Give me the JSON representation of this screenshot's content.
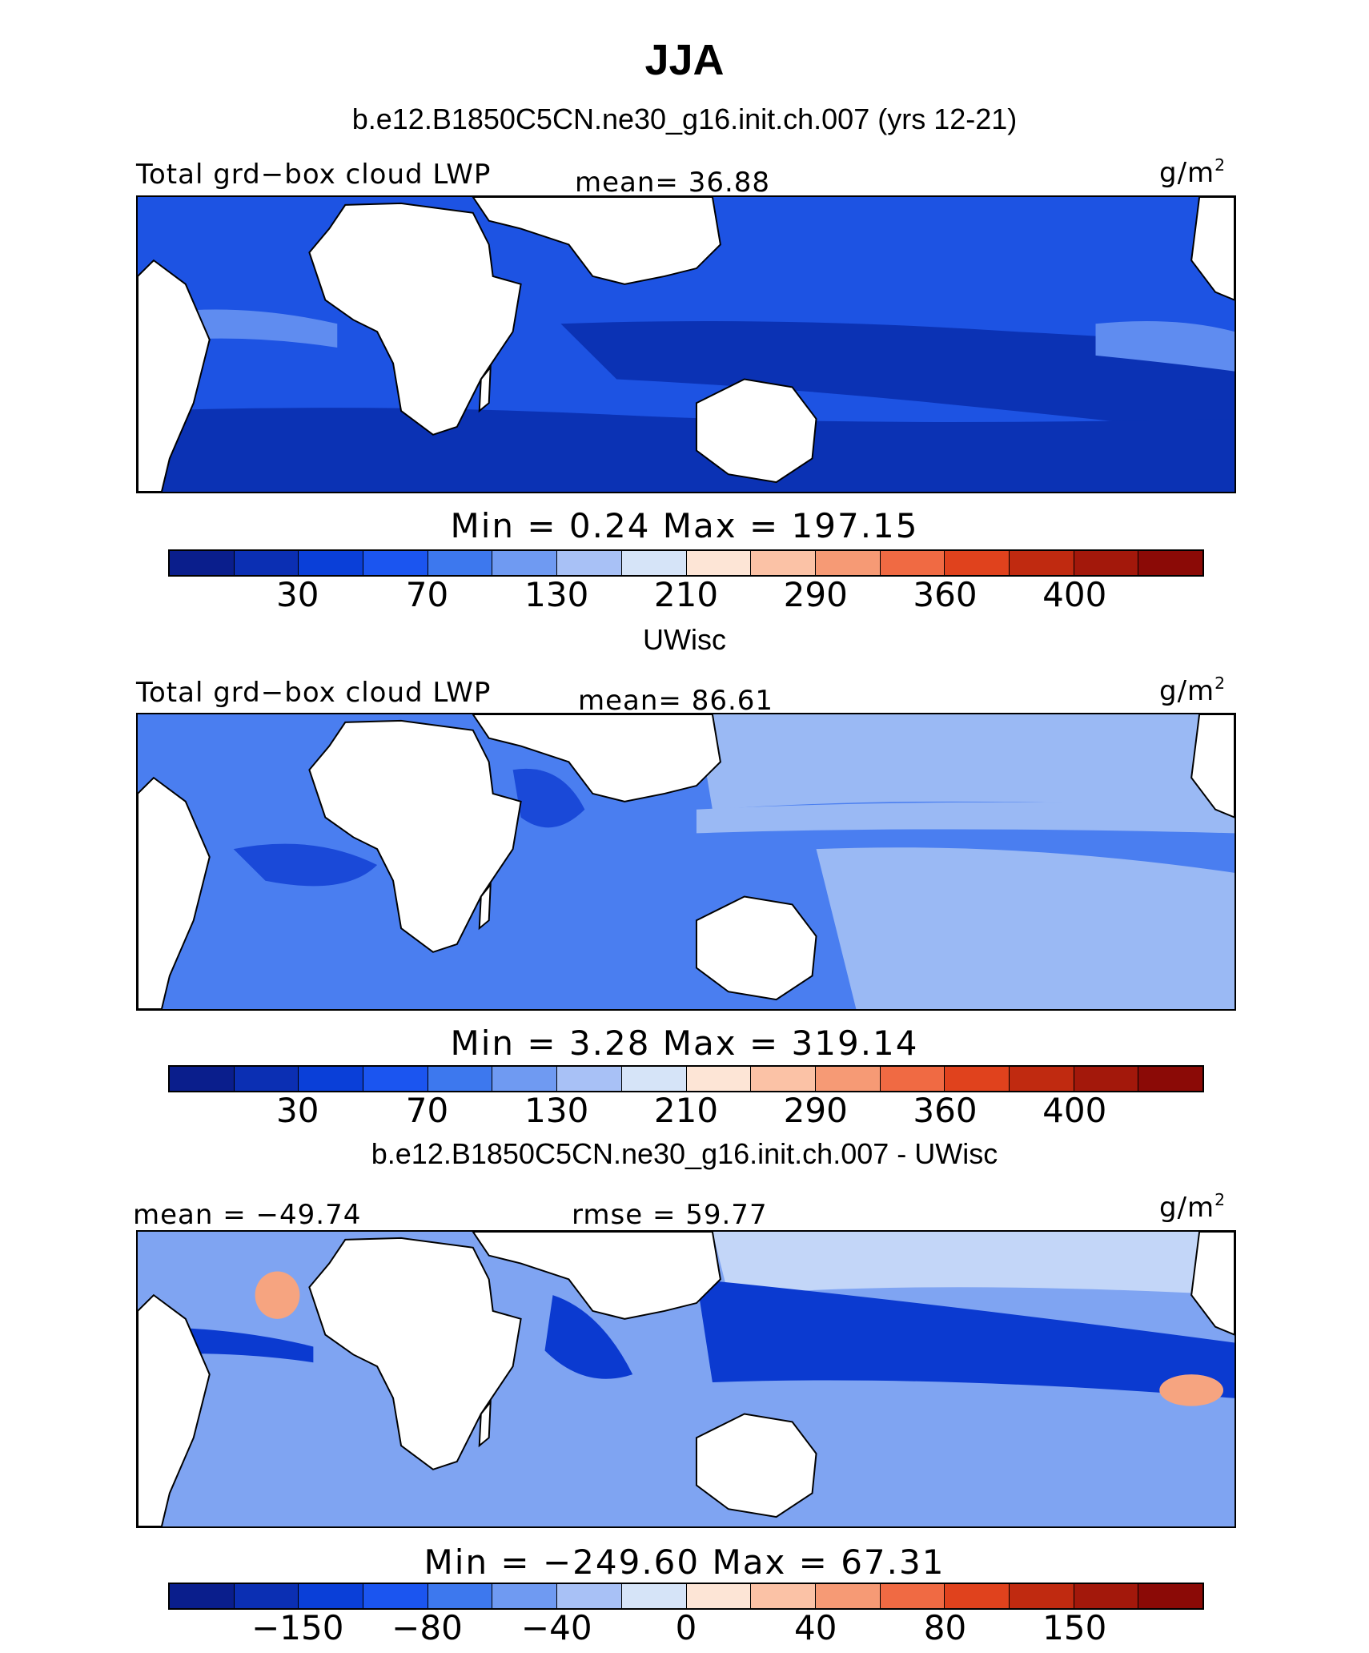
{
  "figure": {
    "title": "JJA"
  },
  "panels": [
    {
      "subtitle": "b.e12.B1850C5CN.ne30_g16.init.ch.007 (yrs 12-21)",
      "left_label": "Total grd−box cloud LWP",
      "center_label": "mean=  36.88",
      "units": "g/m",
      "units_sup": "2",
      "stats": "Min =    0.24 Max = 197.15",
      "palette": [
        "#0a1e8c",
        "#0b2fb3",
        "#0a3fd8",
        "#1b55f0",
        "#3d78ee",
        "#6f9af2",
        "#a8c1f6",
        "#d6e4f8",
        "#fde5d6",
        "#fbc2a6",
        "#f69a75",
        "#f06a43",
        "#e0421d",
        "#c02a10",
        "#a3180b",
        "#8b0a06"
      ],
      "tick_labels": [
        "30",
        "70",
        "130",
        "210",
        "290",
        "360",
        "400"
      ],
      "field_stops": {
        "dominant": "#1d53e3",
        "dark": "#0b32b4",
        "light": "#5f8cf0"
      }
    },
    {
      "subtitle": "UWisc",
      "left_label": "Total grd−box cloud LWP",
      "center_label": "mean=  86.61",
      "units": "g/m",
      "units_sup": "2",
      "stats": "Min =    3.28 Max = 319.14",
      "palette": [
        "#0a1e8c",
        "#0b2fb3",
        "#0a3fd8",
        "#1b55f0",
        "#3d78ee",
        "#6f9af2",
        "#a8c1f6",
        "#d6e4f8",
        "#fde5d6",
        "#fbc2a6",
        "#f69a75",
        "#f06a43",
        "#e0421d",
        "#c02a10",
        "#a3180b",
        "#8b0a06"
      ],
      "tick_labels": [
        "30",
        "70",
        "130",
        "210",
        "290",
        "360",
        "400"
      ],
      "field_stops": {
        "dominant": "#4a7ef0",
        "dark": "#1a49d8",
        "light": "#9ab9f4"
      }
    },
    {
      "subtitle": "b.e12.B1850C5CN.ne30_g16.init.ch.007 - UWisc",
      "left_label": "mean = −49.74",
      "center_label": "rmse =  59.77",
      "units": "g/m",
      "units_sup": "2",
      "stats": "Min = −249.60 Max =  67.31",
      "palette": [
        "#0a1e8c",
        "#0b2fb3",
        "#0a3fd8",
        "#1b55f0",
        "#3d78ee",
        "#6f9af2",
        "#a8c1f6",
        "#d6e4f8",
        "#fde5d6",
        "#fbc2a6",
        "#f69a75",
        "#f06a43",
        "#e0421d",
        "#c02a10",
        "#a3180b",
        "#8b0a06"
      ],
      "tick_labels": [
        "−150",
        "−80",
        "−40",
        "0",
        "40",
        "80",
        "150"
      ],
      "field_stops": {
        "dominant": "#7fa4f2",
        "dark": "#0b3ad0",
        "light": "#c3d6f8"
      }
    }
  ]
}
